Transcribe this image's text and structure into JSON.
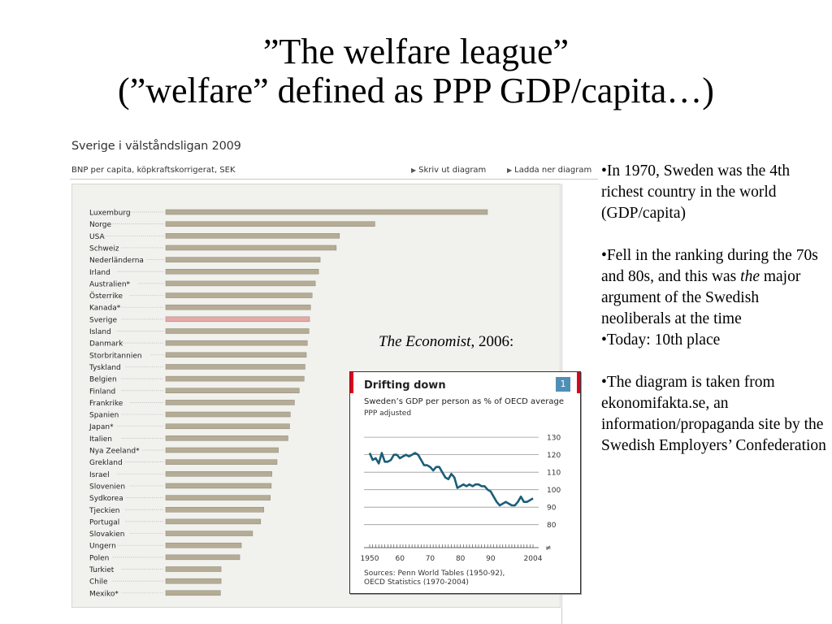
{
  "slide": {
    "title_line1": "”The welfare league”",
    "title_line2": "(”welfare” defined as PPP GDP/capita…)"
  },
  "left_chart": {
    "title": "Sverige i välståndsligan 2009",
    "subtitle": "BNP per capita, köpkraftskorrigerat, SEK",
    "print_label": "Skriv ut diagram",
    "download_label": "Ladda ner diagram"
  },
  "economist": {
    "label_italic": "The Economist",
    "label_rest": ", 2006:",
    "title": "Drifting down",
    "subtitle": "Sweden’s GDP per person as % of OECD average",
    "subtitle2": "PPP adjusted",
    "badge": "1",
    "source_line1": "Sources: Penn World Tables (1950-92),",
    "source_line2": "OECD Statistics (1970-2004)"
  },
  "bullets": {
    "b1": "•In 1970, Sweden was the 4th richest country in the world (GDP/capita)",
    "b2_pre": "•Fell in the ranking during the 70s and 80s, and this was ",
    "b2_em": "the",
    "b2_post": " major argument of the Swedish neoliberals at the time",
    "b3": "•Today: 10th place",
    "b4": "•The diagram is taken from ekonomifakta.se, an information/propaganda site by the Swedish Employers’ Confederation"
  },
  "chart_data": [
    {
      "type": "bar",
      "orientation": "horizontal",
      "title": "Sverige i välståndsligan 2009",
      "subtitle": "BNP per capita, köpkraftskorrigerat, SEK",
      "categories": [
        "Luxemburg",
        "Norge",
        "USA",
        "Schweiz",
        "Nederländerna",
        "Irland",
        "Australien*",
        "Österrike",
        "Kanada*",
        "Sverige",
        "Island",
        "Danmark",
        "Storbritannien",
        "Tyskland",
        "Belgien",
        "Finland",
        "Frankrike",
        "Spanien",
        "Japan*",
        "Italien",
        "Nya Zeeland*",
        "Grekland",
        "Israel",
        "Slovenien",
        "Sydkorea",
        "Tjeckien",
        "Portugal",
        "Slovakien",
        "Ungern",
        "Polen",
        "Turkiet",
        "Chile",
        "Mexiko*"
      ],
      "values": [
        100,
        65,
        54,
        53,
        48,
        47.5,
        46.5,
        45.5,
        45,
        44.7,
        44.5,
        44,
        43.7,
        43.3,
        43,
        41.5,
        40,
        38.7,
        38.5,
        38,
        35,
        34.6,
        33,
        32.8,
        32.5,
        30.5,
        29.5,
        27,
        23.5,
        23,
        17.2,
        17.2,
        17
      ],
      "value_unit": "relative bar length, Luxemburg = 100 (no axis shown)",
      "highlight": "Sverige",
      "colors": {
        "bar": "#b5ac96",
        "highlight": "#e8a8a8",
        "background": "#f1f1ee"
      }
    },
    {
      "type": "line",
      "title": "Drifting down",
      "subtitle": "Sweden’s GDP per person as % of OECD average",
      "x": [
        1950,
        1951,
        1952,
        1953,
        1954,
        1955,
        1956,
        1957,
        1958,
        1959,
        1960,
        1961,
        1962,
        1963,
        1964,
        1965,
        1966,
        1967,
        1968,
        1969,
        1970,
        1971,
        1972,
        1973,
        1974,
        1975,
        1976,
        1977,
        1978,
        1979,
        1980,
        1981,
        1982,
        1983,
        1984,
        1985,
        1986,
        1987,
        1988,
        1989,
        1990,
        1991,
        1992,
        1993,
        1994,
        1995,
        1996,
        1997,
        1998,
        1999,
        2000,
        2001,
        2002,
        2003,
        2004
      ],
      "y": [
        121,
        117,
        118,
        115,
        121,
        116,
        116,
        117,
        120,
        120,
        118,
        119,
        120,
        119,
        120,
        121,
        120,
        117,
        114,
        114,
        113,
        111,
        113,
        113,
        110,
        107,
        106,
        109,
        107,
        101,
        102,
        103,
        102,
        103,
        102,
        103,
        103,
        102,
        102,
        100,
        99,
        96,
        93,
        91,
        92,
        93,
        92,
        91,
        91,
        93,
        96,
        93,
        93,
        94,
        95
      ],
      "xticks": [
        "1950",
        "60",
        "70",
        "80",
        "90",
        "2004"
      ],
      "yticks": [
        80,
        90,
        100,
        110,
        120,
        130
      ],
      "ylim": [
        78,
        131
      ],
      "colors": {
        "line": "#1b5e78",
        "grid": "#999999"
      }
    }
  ]
}
